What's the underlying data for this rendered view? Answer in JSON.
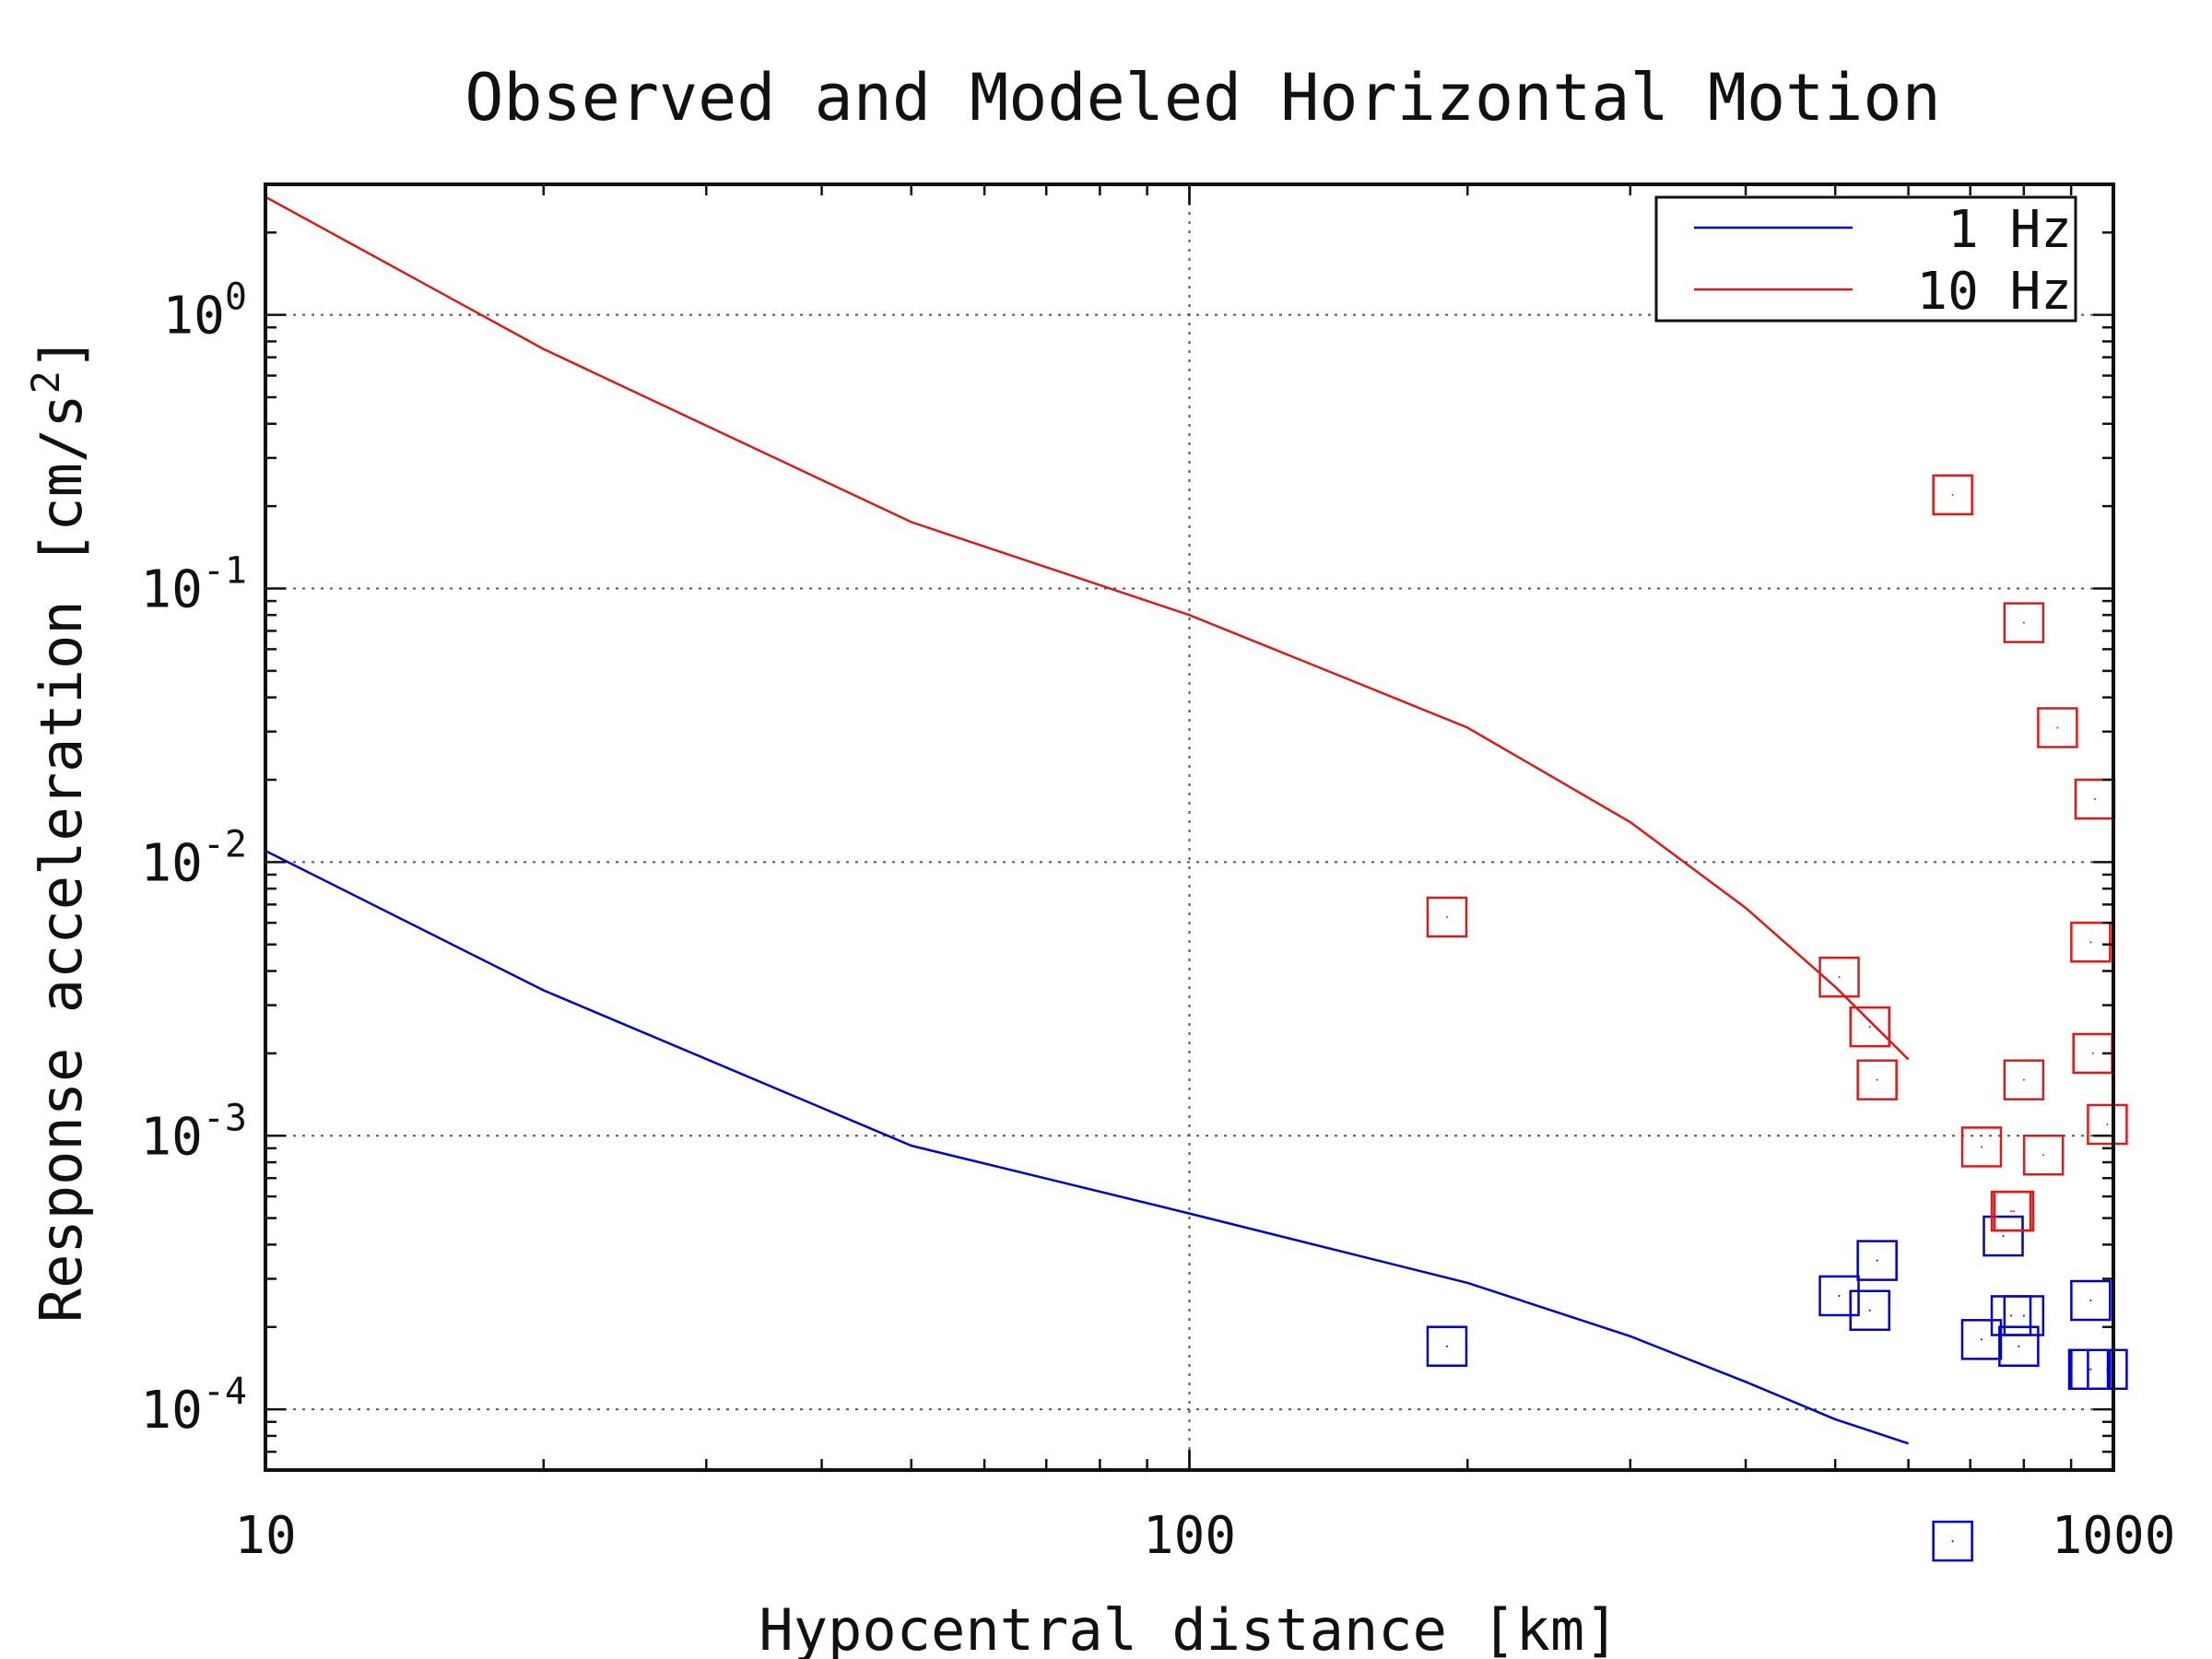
{
  "chart_data": {
    "type": "scatter",
    "title": "Observed and Modeled Horizontal Motion",
    "xlabel": "Hypocentral distance [km]",
    "ylabel_text": "Response acceleration [cm/s",
    "ylabel_sup": "2",
    "ylabel_end": "]",
    "xscale": "log",
    "yscale": "log",
    "xlim": [
      10,
      1000
    ],
    "ylim": [
      6e-05,
      3
    ],
    "grid": true,
    "legend_position": "top-right",
    "x_ticks": [
      {
        "value": 10,
        "label": "10"
      },
      {
        "value": 100,
        "label": "100"
      },
      {
        "value": 1000,
        "label": "1000"
      }
    ],
    "y_ticks": [
      {
        "value": 1,
        "base": "10",
        "exp": "0"
      },
      {
        "value": 0.1,
        "base": "10",
        "exp": "-1"
      },
      {
        "value": 0.01,
        "base": "10",
        "exp": "-2"
      },
      {
        "value": 0.001,
        "base": "10",
        "exp": "-3"
      },
      {
        "value": 0.0001,
        "base": "10",
        "exp": "-4"
      }
    ],
    "series": [
      {
        "name": "1 Hz",
        "color": "#0000c8",
        "model_curve": {
          "x": [
            10,
            20,
            50,
            100,
            200,
            300,
            400,
            500,
            600
          ],
          "y": [
            0.011,
            0.0034,
            0.00092,
            0.00052,
            0.00029,
            0.000185,
            0.000126,
            9.2e-05,
            7.5e-05
          ]
        },
        "observed": {
          "x": [
            190,
            670,
            505,
            555,
            545,
            720,
            760,
            790,
            775,
            800,
            945,
            940,
            945,
            985
          ],
          "y": [
            0.00017,
            3.3e-05,
            0.00026,
            0.00035,
            0.00023,
            0.00018,
            0.00043,
            0.00017,
            0.00022,
            0.00022,
            0.00025,
            0.00014,
            0.00014,
            0.00014
          ]
        }
      },
      {
        "name": "10 Hz",
        "color": "#d81c1c",
        "model_curve": {
          "x": [
            10,
            20,
            50,
            100,
            150,
            200,
            300,
            400,
            500,
            600
          ],
          "y": [
            2.7,
            0.75,
            0.175,
            0.08,
            0.046,
            0.031,
            0.014,
            0.0068,
            0.0035,
            0.0019
          ]
        },
        "observed": {
          "x": [
            670,
            800,
            870,
            955,
            945,
            190,
            505,
            545,
            555,
            720,
            780,
            950,
            800,
            985,
            775,
            840
          ],
          "y": [
            0.22,
            0.075,
            0.031,
            0.017,
            0.0051,
            0.0063,
            0.0038,
            0.0025,
            0.0016,
            0.00091,
            0.00053,
            0.002,
            0.0016,
            0.0011,
            0.00053,
            0.00085
          ]
        }
      }
    ]
  }
}
